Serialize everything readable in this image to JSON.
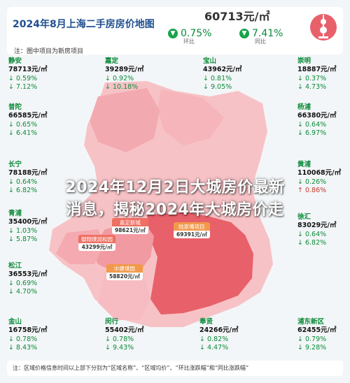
{
  "header": {
    "title": "2024年8月上海二手房房价地图",
    "note": "注：图中项目为新房项目",
    "city_price": "60713元/㎡",
    "mom_change": "0.75%",
    "mom_label": "环比",
    "yoy_change": "7.41%",
    "yoy_label": "同比",
    "arrow_down": "▼"
  },
  "overlay": {
    "line1": "2024年12月2日大城房价最新",
    "line2": "消息，揭秘2024年大城房价走"
  },
  "districts": [
    {
      "name": "静安",
      "price": "78713元/㎡",
      "c1": "↓ 0.59%",
      "c2": "↓ 7.12%"
    },
    {
      "name": "嘉定",
      "price": "39289元/㎡",
      "c1": "↓ 0.92%",
      "c2": "↓ 10.18%"
    },
    {
      "name": "宝山",
      "price": "43962元/㎡",
      "c1": "↓ 0.81%",
      "c2": "↓ 9.05%"
    },
    {
      "name": "崇明",
      "price": "18887元/㎡",
      "c1": "↓ 0.37%",
      "c2": "↓ 4.73%"
    },
    {
      "name": "普陀",
      "price": "66585元/㎡",
      "c1": "↓ 0.65%",
      "c2": "↓ 6.41%"
    },
    {
      "name": "杨浦",
      "price": "66380元/㎡",
      "c1": "↓ 0.64%",
      "c2": "↓ 6.97%"
    },
    {
      "name": "长宁",
      "price": "78188元/㎡",
      "c1": "↓ 0.64%",
      "c2": "↓ 6.82%"
    },
    {
      "name": "黄浦",
      "price": "110068元/㎡",
      "c1": "↓ 0.26%",
      "c2": "↑ 0.86%"
    },
    {
      "name": "青浦",
      "price": "35400元/㎡",
      "c1": "↓ 1.03%",
      "c2": "↓ 5.87%"
    },
    {
      "name": "徐汇",
      "price": "83029元/㎡",
      "c1": "↓ 0.64%",
      "c2": "↓ 6.82%"
    },
    {
      "name": "松江",
      "price": "36553元/㎡",
      "c1": "↓ 0.69%",
      "c2": "↓ 4.70%"
    },
    {
      "name": "金山",
      "price": "16758元/㎡",
      "c1": "↓ 0.78%",
      "c2": "↓ 8.43%"
    },
    {
      "name": "闵行",
      "price": "55402元/㎡",
      "c1": "↓ 0.78%",
      "c2": "↓ 9.43%"
    },
    {
      "name": "奉贤",
      "price": "24266元/㎡",
      "c1": "↓ 0.82%",
      "c2": "↓ 4.47%"
    },
    {
      "name": "浦东新区",
      "price": "62455元/㎡",
      "c1": "↓ 0.79%",
      "c2": "↓ 9.28%"
    }
  ],
  "bubbles": [
    {
      "name": "嘉定新城",
      "price": "98621元/㎡"
    },
    {
      "name": "御翔璞润和园",
      "price": "43299元/㎡"
    },
    {
      "name": "陆家嘴项目",
      "price": "69391元/㎡"
    },
    {
      "name": "中建璞园",
      "price": "58820元/㎡"
    }
  ],
  "footer": {
    "text": "注：区域价格信息时间以上部下分别为“区域名称”、“区域均价”、“环比涨跌幅”和“同比涨跌幅”"
  },
  "colors": {
    "title_blue": "#1f4f8f",
    "down_green": "#0c8a3a",
    "up_red": "#c0392b",
    "map_pink": "#f4a6ae",
    "map_red": "#e8606a"
  }
}
